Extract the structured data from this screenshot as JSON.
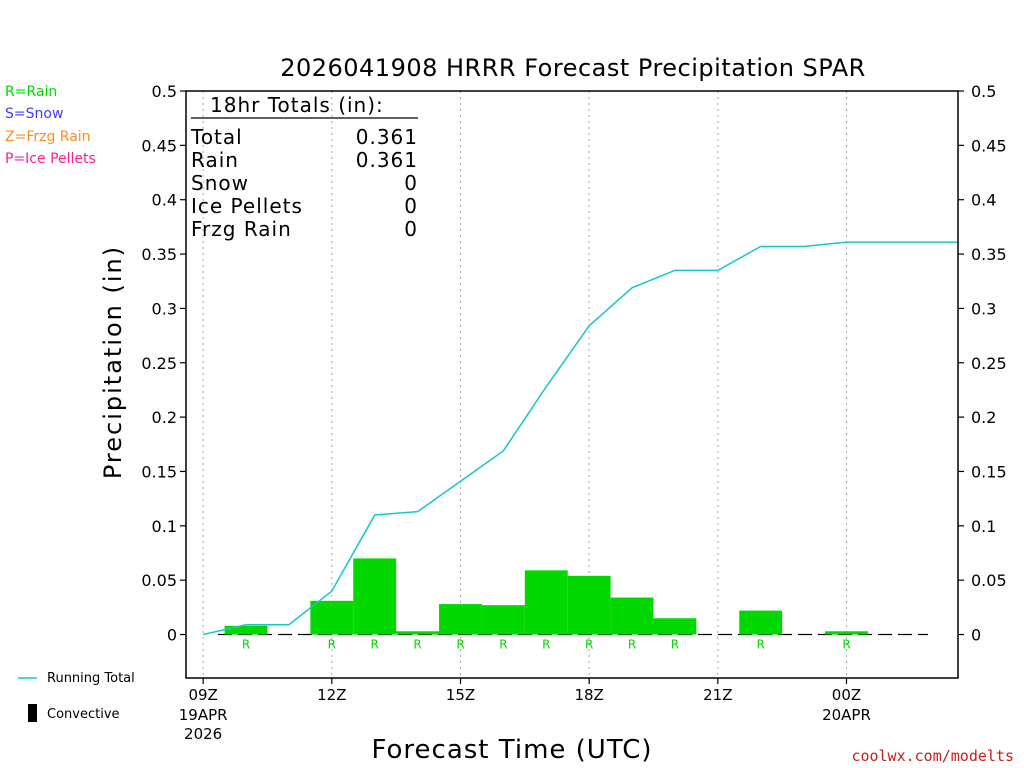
{
  "chart_data": {
    "type": "bar",
    "title": "2026041908 HRRR Forecast Precipitation SPAR",
    "xlabel": "Forecast Time (UTC)",
    "ylabel": "Precipitation (in)",
    "ylim": [
      -0.04,
      0.5
    ],
    "xlim": [
      -0.4,
      17.6
    ],
    "y_ticks": [
      0,
      0.05,
      0.1,
      0.15,
      0.2,
      0.25,
      0.3,
      0.35,
      0.4,
      0.45,
      0.5
    ],
    "y_tick_labels": [
      "0",
      "0.05",
      "0.1",
      "0.15",
      "0.2",
      "0.25",
      "0.3",
      "0.35",
      "0.4",
      "0.45",
      "0.5"
    ],
    "x_ticks": [
      {
        "x": 0,
        "label": "09Z",
        "sub1": "19APR",
        "sub2": "2026"
      },
      {
        "x": 3,
        "label": "12Z",
        "sub1": "",
        "sub2": ""
      },
      {
        "x": 6,
        "label": "15Z",
        "sub1": "",
        "sub2": ""
      },
      {
        "x": 9,
        "label": "18Z",
        "sub1": "",
        "sub2": ""
      },
      {
        "x": 12,
        "label": "21Z",
        "sub1": "",
        "sub2": ""
      },
      {
        "x": 15,
        "label": "00Z",
        "sub1": "20APR",
        "sub2": ""
      }
    ],
    "grid": "vertical-dotted",
    "hourly_precip": {
      "hours": [
        1,
        3,
        4,
        5,
        6,
        7,
        8,
        9,
        10,
        11,
        13,
        15
      ],
      "values": [
        0.008,
        0.031,
        0.07,
        0.003,
        0.028,
        0.027,
        0.059,
        0.054,
        0.034,
        0.015,
        0.022,
        0.003
      ],
      "type_codes": [
        "R",
        "R",
        "R",
        "R",
        "R",
        "R",
        "R",
        "R",
        "R",
        "R",
        "R",
        "R"
      ]
    },
    "running_total": {
      "x": [
        0,
        1,
        2,
        3,
        4,
        5,
        6,
        7,
        8,
        9,
        10,
        11,
        12,
        13,
        14,
        15,
        16,
        17
      ],
      "y": [
        0,
        0.009,
        0.009,
        0.04,
        0.11,
        0.113,
        0.141,
        0.169,
        0.228,
        0.284,
        0.319,
        0.335,
        0.335,
        0.357,
        0.357,
        0.361,
        0.361,
        0.361
      ]
    },
    "colors": {
      "rain": "#00d800",
      "snow": "#3c3cff",
      "frzg_rain": "#ff8c1e",
      "ice_pellets": "#ff1e8c",
      "running_total": "#14c8c8",
      "grid": "#a8a8a8",
      "credit": "#c81e1e"
    }
  },
  "totals_box": {
    "header": "18hr Totals (in):",
    "rows": [
      {
        "label": "Total",
        "value": "0.361"
      },
      {
        "label": "Rain",
        "value": "0.361"
      },
      {
        "label": "Snow",
        "value": "0"
      },
      {
        "label": "Ice Pellets",
        "value": "0"
      },
      {
        "label": "Frzg Rain",
        "value": "0"
      }
    ]
  },
  "legend": {
    "rain": "R=Rain",
    "snow": "S=Snow",
    "frzg_rain": "Z=Frzg Rain",
    "ice_pellets": "P=Ice Pellets",
    "running_total": "Running Total",
    "convective": "Convective"
  },
  "credit": "coolwx.com/modelts"
}
